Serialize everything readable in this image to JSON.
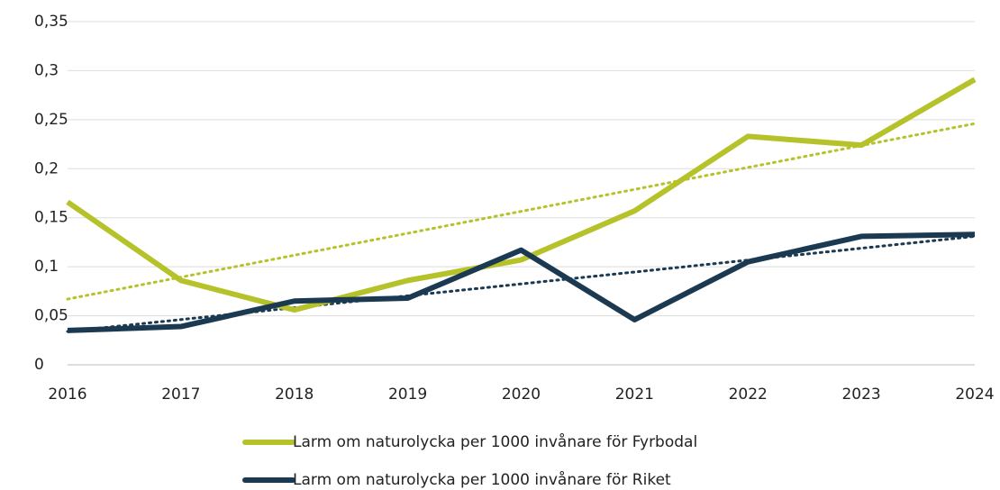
{
  "chart_data": {
    "type": "line",
    "categories": [
      "2016",
      "2017",
      "2018",
      "2019",
      "2020",
      "2021",
      "2022",
      "2023",
      "2024"
    ],
    "series": [
      {
        "name": "Larm om naturolycka per 1000 invånare för Fyrbodal",
        "color": "#b5c22a",
        "values": [
          0.166,
          0.086,
          0.056,
          0.086,
          0.107,
          0.157,
          0.233,
          0.224,
          0.291
        ],
        "trend": [
          0.067,
          0.246
        ]
      },
      {
        "name": "Larm om naturolycka per 1000 invånare för Riket",
        "color": "#1b3a52",
        "values": [
          0.035,
          0.039,
          0.065,
          0.068,
          0.117,
          0.046,
          0.105,
          0.131,
          0.133
        ],
        "trend": [
          0.034,
          0.131
        ]
      }
    ],
    "ylim": [
      0,
      0.35
    ],
    "yticks": [
      0,
      {
        "value": 0.05,
        "label": "0,05"
      },
      {
        "value": 0.1,
        "label": "0,1"
      },
      {
        "value": 0.15,
        "label": "0,15"
      },
      {
        "value": 0.2,
        "label": "0,2"
      },
      {
        "value": 0.25,
        "label": "0,25"
      },
      {
        "value": 0.3,
        "label": "0,3"
      },
      {
        "value": 0.35,
        "label": "0,35"
      }
    ],
    "grid": true
  }
}
